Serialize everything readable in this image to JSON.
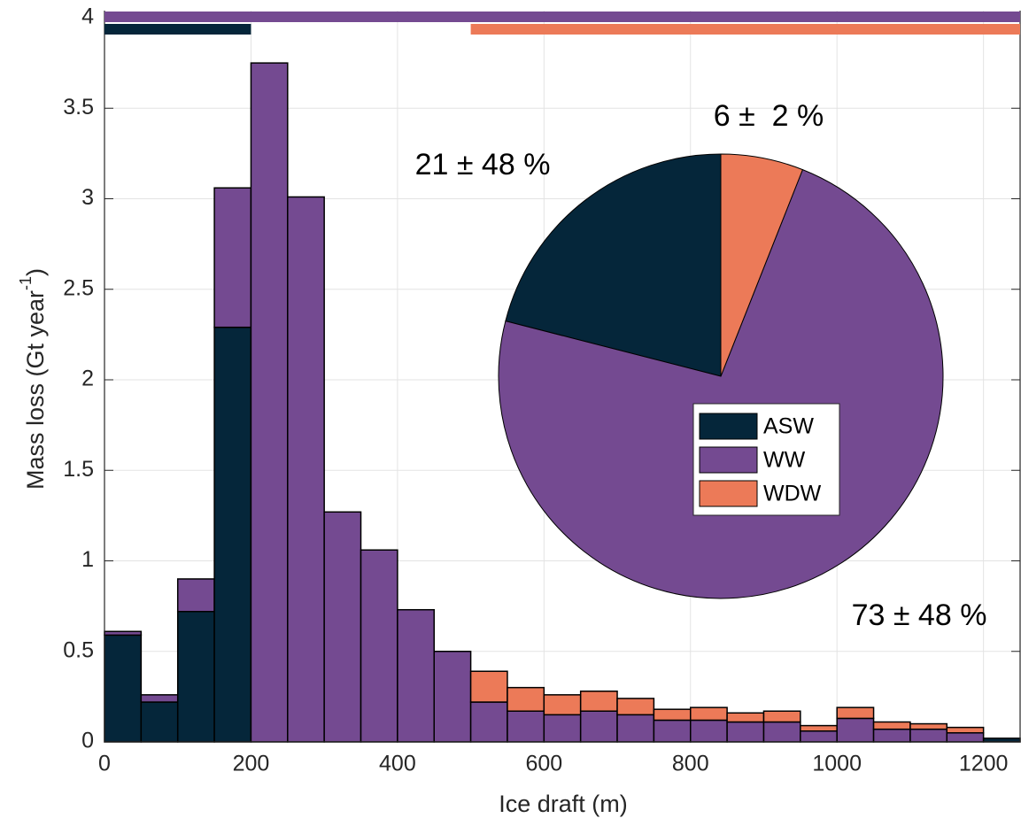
{
  "chart_data": [
    {
      "type": "stacked-histogram",
      "xlabel": "Ice draft (m)",
      "ylabel": {
        "text": "Mass loss (Gt year",
        "sup": "-1",
        "end": ")"
      },
      "bins": [
        0,
        50,
        100,
        150,
        200,
        250,
        300,
        350,
        400,
        450,
        500,
        550,
        600,
        650,
        700,
        750,
        800,
        850,
        900,
        950,
        1000,
        1050,
        1100,
        1150,
        1200,
        1250
      ],
      "series": [
        {
          "name": "ASW",
          "color": "#05263a",
          "range": [
            0,
            200
          ],
          "values": [
            0.59,
            0.22,
            0.72,
            2.29,
            0,
            0,
            0,
            0,
            0,
            0,
            0,
            0,
            0,
            0,
            0,
            0,
            0,
            0,
            0,
            0,
            0,
            0,
            0,
            0,
            0.02
          ]
        },
        {
          "name": "WW",
          "color": "#744a91",
          "range": [
            0,
            1250
          ],
          "values": [
            0.02,
            0.04,
            0.18,
            0.77,
            3.75,
            3.01,
            1.27,
            1.06,
            0.73,
            0.5,
            0.22,
            0.17,
            0.15,
            0.17,
            0.15,
            0.12,
            0.12,
            0.11,
            0.11,
            0.06,
            0.13,
            0.07,
            0.07,
            0.05,
            0
          ]
        },
        {
          "name": "WDW",
          "color": "#ec7a58",
          "range": [
            500,
            1250
          ],
          "values": [
            0,
            0,
            0,
            0,
            0,
            0,
            0,
            0,
            0,
            0,
            0.17,
            0.13,
            0.11,
            0.11,
            0.09,
            0.06,
            0.07,
            0.05,
            0.06,
            0.03,
            0.06,
            0.04,
            0.03,
            0.03,
            0
          ]
        }
      ],
      "xlim": [
        0,
        1250
      ],
      "xticks": [
        0,
        200,
        400,
        600,
        800,
        1000,
        1200
      ],
      "ylim": [
        0,
        4
      ],
      "yticks": [
        0,
        0.5,
        1,
        1.5,
        2,
        2.5,
        3,
        3.5,
        4
      ],
      "grid": true
    },
    {
      "type": "pie",
      "categories": [
        "ASW",
        "WW",
        "WDW"
      ],
      "colors": [
        "#05263a",
        "#744a91",
        "#ec7a58"
      ],
      "values": [
        21,
        73,
        6
      ],
      "value_labels": [
        "21 ± 48 %",
        "73 ± 48 %",
        "6 ±  2 %"
      ]
    }
  ]
}
